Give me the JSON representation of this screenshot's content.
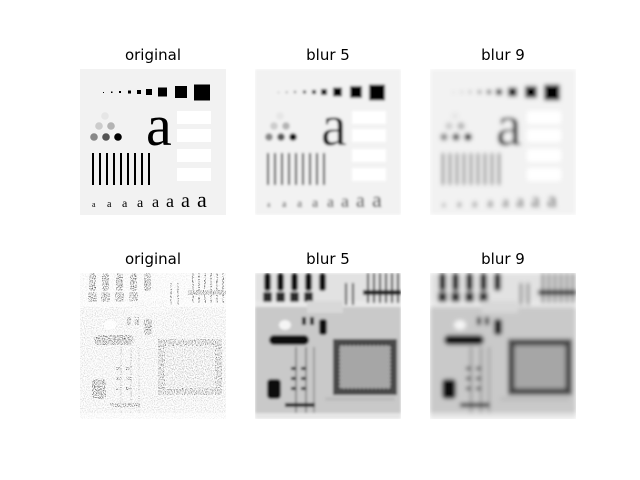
{
  "figure": {
    "rows": [
      {
        "row_name": "test-pattern-row",
        "panels": [
          {
            "title": "original",
            "image": "test-pattern",
            "blur": 0
          },
          {
            "title": "blur 5",
            "image": "test-pattern",
            "blur": 5
          },
          {
            "title": "blur 9",
            "image": "test-pattern",
            "blur": 9
          }
        ]
      },
      {
        "row_name": "circuit-xray-row",
        "panels": [
          {
            "title": "original",
            "image": "circuit-board-xray",
            "blur": 0
          },
          {
            "title": "blur 5",
            "image": "circuit-board-xray",
            "blur": 5
          },
          {
            "title": "blur 9",
            "image": "circuit-board-xray",
            "blur": 9
          }
        ]
      }
    ]
  }
}
